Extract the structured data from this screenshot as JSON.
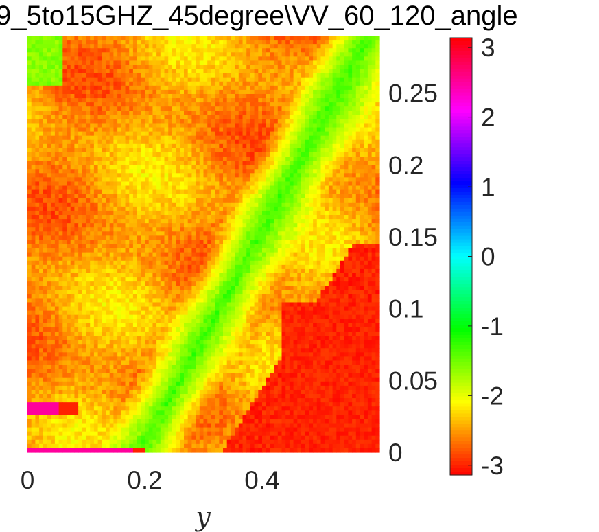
{
  "chart_data": {
    "type": "heatmap",
    "title": "9_5to15GHZ_45degree\\VV_60_120_angle",
    "xlabel": "y",
    "ylabel": "",
    "xlim": [
      0,
      0.6
    ],
    "ylim": [
      0,
      0.29
    ],
    "x_ticks": [
      "0",
      "0.2",
      "0.4"
    ],
    "x_tick_values": [
      0,
      0.2,
      0.4
    ],
    "y_ticks": [
      "0",
      "0.05",
      "0.1",
      "0.15",
      "0.2",
      "0.25"
    ],
    "y_tick_values": [
      0,
      0.05,
      0.1,
      0.15,
      0.2,
      0.25
    ],
    "y_axis_side": "right",
    "colorbar": {
      "colormap": "hsv",
      "clim": [
        -3.14,
        3.14
      ],
      "ticks": [
        "3",
        "2",
        "1",
        "0",
        "-1",
        "-2",
        "-3"
      ],
      "tick_values": [
        3,
        2,
        1,
        0,
        -1,
        -2,
        -3
      ],
      "placement": "right"
    },
    "grid": false,
    "description_of_field": {
      "dominant_value": -2.5,
      "green_band_value": -1.3,
      "lower_right_value": -3.0,
      "edge_strip_value": 2.5
    }
  }
}
